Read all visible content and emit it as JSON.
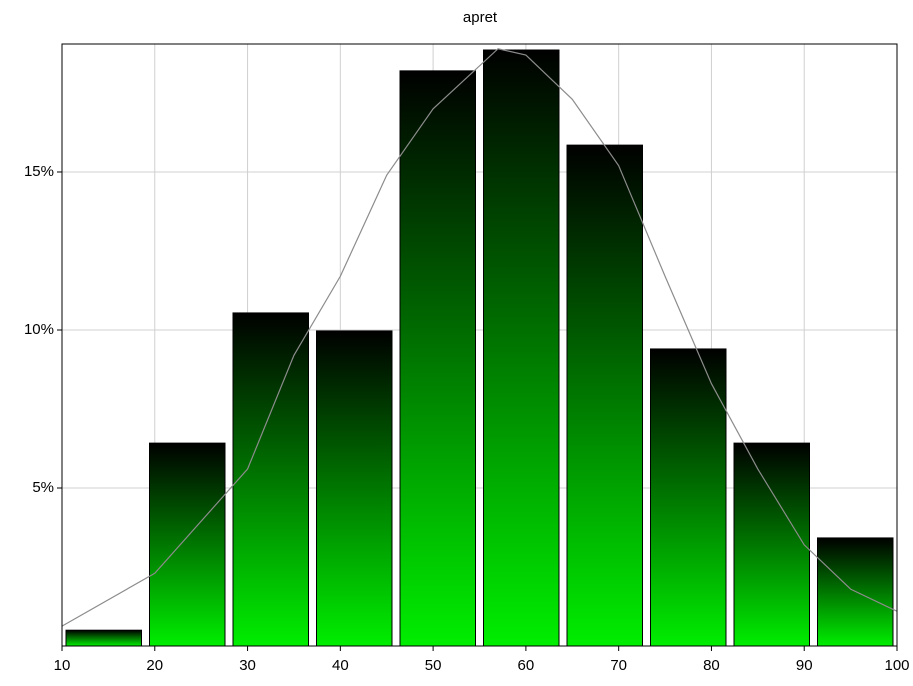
{
  "chart_data": {
    "type": "histogram",
    "title": "apret",
    "bins": [
      10,
      19,
      28,
      37,
      46,
      55,
      64,
      73,
      82,
      91,
      100
    ],
    "values": [
      0.5,
      6.42,
      10.54,
      9.97,
      18.2,
      18.86,
      15.85,
      9.4,
      6.42,
      3.42
    ],
    "color": "#00ee00",
    "curve": {
      "color": "#8c8c8c",
      "x": [
        10,
        20,
        30,
        35,
        40,
        45,
        50,
        57,
        60,
        65,
        70,
        75,
        80,
        85,
        90,
        95,
        100
      ],
      "values": [
        0.63,
        2.3,
        5.6,
        9.2,
        11.7,
        14.9,
        17,
        18.9,
        18.7,
        17.3,
        15.2,
        11.7,
        8.3,
        5.6,
        3.2,
        1.8,
        1.1
      ]
    },
    "xlim": [
      10,
      100
    ],
    "xticks": [
      10,
      20,
      30,
      40,
      50,
      60,
      70,
      80,
      90,
      100
    ],
    "ylim": [
      0,
      19.05
    ],
    "yticks": [
      {
        "value": 5,
        "label": "5%"
      },
      {
        "value": 10,
        "label": "10%"
      },
      {
        "value": 15,
        "label": "15%"
      }
    ],
    "grid": true
  }
}
